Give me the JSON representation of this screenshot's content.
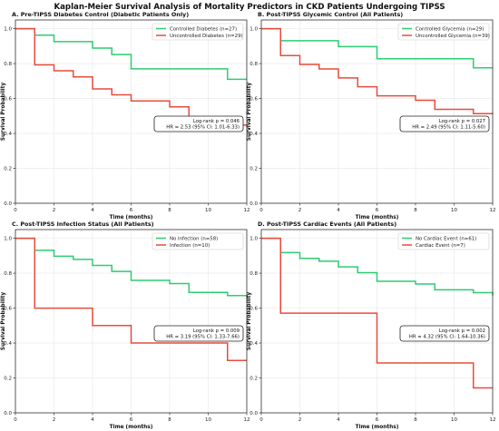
{
  "title": "Kaplan-Meier Survival Analysis of Mortality Predictors in CKD Patients Undergoing TIPSS",
  "colors": {
    "green": "#2ecc71",
    "red": "#e74c3c",
    "axis": "#333333",
    "grid": "#e6e6e6"
  },
  "chart_data": [
    {
      "type": "line",
      "title": "A. Pre-TIPSS Diabetes Control (Diabetic Patients Only)",
      "xlabel": "Time (months)",
      "ylabel": "Survival Probability",
      "xlim": [
        0,
        12
      ],
      "ylim": [
        0,
        1.05
      ],
      "xticks": [
        "0",
        "2",
        "4",
        "6",
        "8",
        "10",
        "12"
      ],
      "yticks": [
        "0.0",
        "0.2",
        "0.4",
        "0.6",
        "0.8",
        "1.0"
      ],
      "grid": true,
      "legend_position": "top-right",
      "stats": [
        "Log-rank p = 0.046",
        "HR = 2.53 (95% CI: 1.01-6.33)"
      ],
      "series": [
        {
          "name": "Controlled Diabetes (n=27)",
          "color": "#2ecc71",
          "x": [
            0,
            1,
            2,
            4,
            5,
            6,
            11,
            12
          ],
          "y": [
            1.0,
            0.963,
            0.926,
            0.889,
            0.852,
            0.77,
            0.71,
            0.71
          ]
        },
        {
          "name": "Uncontrolled Diabetes (n=29)",
          "color": "#e74c3c",
          "x": [
            0,
            1,
            2,
            3,
            4,
            5,
            6,
            8,
            9,
            11,
            12
          ],
          "y": [
            1.0,
            0.793,
            0.759,
            0.724,
            0.655,
            0.621,
            0.586,
            0.552,
            0.483,
            0.448,
            0.44
          ]
        }
      ]
    },
    {
      "type": "line",
      "title": "B. Post-TIPSS Glycemic Control (All Patients)",
      "xlabel": "Time (months)",
      "ylabel": "Survival Probability",
      "xlim": [
        0,
        12
      ],
      "ylim": [
        0,
        1.05
      ],
      "xticks": [
        "0",
        "2",
        "4",
        "6",
        "8",
        "10",
        "12"
      ],
      "yticks": [
        "0.0",
        "0.2",
        "0.4",
        "0.6",
        "0.8",
        "1.0"
      ],
      "grid": true,
      "legend_position": "top-right",
      "stats": [
        "Log-rank p = 0.027",
        "HR = 2.49 (95% CI: 1.11-5.60)"
      ],
      "series": [
        {
          "name": "Controlled Glycemia (n=29)",
          "color": "#2ecc71",
          "x": [
            0,
            1,
            4,
            6,
            11,
            12
          ],
          "y": [
            1.0,
            0.931,
            0.897,
            0.828,
            0.776,
            0.776
          ]
        },
        {
          "name": "Uncontrolled Glycemia (n=39)",
          "color": "#e74c3c",
          "x": [
            0,
            1,
            2,
            3,
            4,
            5,
            6,
            8,
            9,
            11,
            12
          ],
          "y": [
            1.0,
            0.846,
            0.795,
            0.769,
            0.718,
            0.667,
            0.615,
            0.59,
            0.538,
            0.513,
            0.51
          ]
        }
      ]
    },
    {
      "type": "line",
      "title": "C. Post-TIPSS Infection Status (All Patients)",
      "xlabel": "Time (months)",
      "ylabel": "Survival Probability",
      "xlim": [
        0,
        12
      ],
      "ylim": [
        0,
        1.05
      ],
      "xticks": [
        "0",
        "2",
        "4",
        "6",
        "8",
        "10",
        "12"
      ],
      "yticks": [
        "0.0",
        "0.2",
        "0.4",
        "0.6",
        "0.8",
        "1.0"
      ],
      "grid": true,
      "legend_position": "top-right",
      "stats": [
        "Log-rank p = 0.009",
        "HR = 3.19 (95% CI: 1.33-7.66)"
      ],
      "series": [
        {
          "name": "No Infection (n=58)",
          "color": "#2ecc71",
          "x": [
            0,
            1,
            2,
            3,
            4,
            5,
            6,
            8,
            9,
            11,
            12
          ],
          "y": [
            1.0,
            0.931,
            0.897,
            0.879,
            0.845,
            0.81,
            0.759,
            0.741,
            0.69,
            0.672,
            0.67
          ]
        },
        {
          "name": "Infection (n=10)",
          "color": "#e74c3c",
          "x": [
            0,
            1,
            4,
            6,
            11,
            12
          ],
          "y": [
            1.0,
            0.6,
            0.5,
            0.4,
            0.3,
            0.3
          ]
        }
      ]
    },
    {
      "type": "line",
      "title": "D. Post-TIPSS Cardiac Events (All Patients)",
      "xlabel": "Time (months)",
      "ylabel": "Survival Probability",
      "xlim": [
        0,
        12
      ],
      "ylim": [
        0,
        1.05
      ],
      "xticks": [
        "0",
        "2",
        "4",
        "6",
        "8",
        "10",
        "12"
      ],
      "yticks": [
        "0.0",
        "0.2",
        "0.4",
        "0.6",
        "0.8",
        "1.0"
      ],
      "grid": true,
      "legend_position": "top-right",
      "stats": [
        "Log-rank p = 0.002",
        "HR = 4.32 (95% CI: 1.64-10.36)"
      ],
      "series": [
        {
          "name": "No Cardiac Event (n=61)",
          "color": "#2ecc71",
          "x": [
            0,
            1,
            2,
            3,
            4,
            5,
            6,
            8,
            9,
            11,
            12
          ],
          "y": [
            1.0,
            0.918,
            0.885,
            0.869,
            0.836,
            0.803,
            0.754,
            0.738,
            0.705,
            0.689,
            0.672
          ]
        },
        {
          "name": "Cardiac Event (n=7)",
          "color": "#e74c3c",
          "x": [
            0,
            1,
            6,
            11,
            12
          ],
          "y": [
            1.0,
            0.571,
            0.286,
            0.143,
            0.143
          ]
        }
      ]
    }
  ]
}
